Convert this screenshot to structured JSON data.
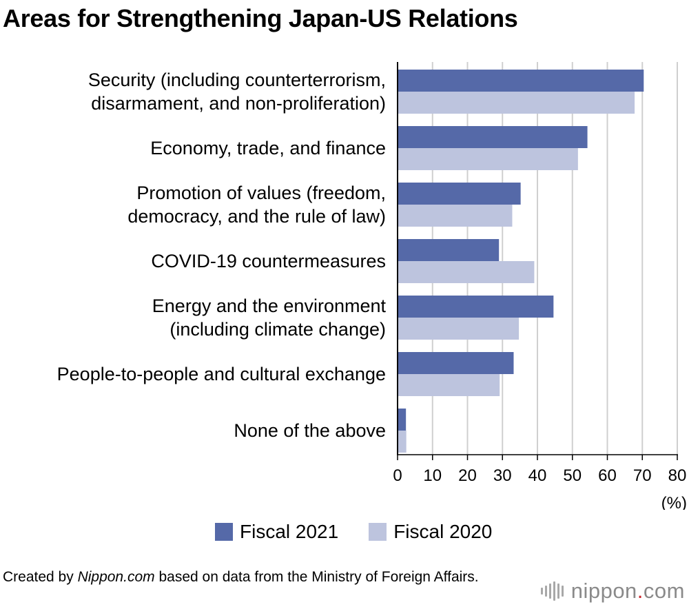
{
  "title": "Areas for Strengthening Japan-US Relations",
  "chart_data": {
    "type": "bar",
    "orientation": "horizontal",
    "title": "Areas for Strengthening Japan-US Relations",
    "categories": [
      [
        "Security (including counterterrorism,",
        "disarmament, and non-proliferation)"
      ],
      [
        "Economy, trade, and finance"
      ],
      [
        "Promotion of values (freedom,",
        "democracy, and the rule of law)"
      ],
      [
        "COVID-19 countermeasures"
      ],
      [
        "Energy and the environment",
        "(including climate change)"
      ],
      [
        "People-to-people and cultural exchange"
      ],
      [
        "None of the above"
      ]
    ],
    "series": [
      {
        "name": "Fiscal 2021",
        "values": [
          70.4,
          54.3,
          35.2,
          29.0,
          44.6,
          33.2,
          2.4
        ]
      },
      {
        "name": "Fiscal 2020",
        "values": [
          67.8,
          51.6,
          32.8,
          39.1,
          34.7,
          29.2,
          2.5
        ]
      }
    ],
    "xlim": [
      0,
      80
    ],
    "xticks": [
      0,
      10,
      20,
      30,
      40,
      50,
      60,
      70,
      80
    ],
    "xunit": "(%)",
    "grid": true,
    "legend_position": "bottom"
  },
  "colors": {
    "fiscal_2021": "#5569a8",
    "fiscal_2020": "#bdc4de",
    "grid": "#cfcfcf"
  },
  "footer": {
    "prefix": "Created by ",
    "source_name": "Nippon.com",
    "suffix": " based on data from the Ministry of Foreign Affairs."
  },
  "logo": {
    "word": "nippon",
    "dot": ".",
    "tld": "com"
  }
}
